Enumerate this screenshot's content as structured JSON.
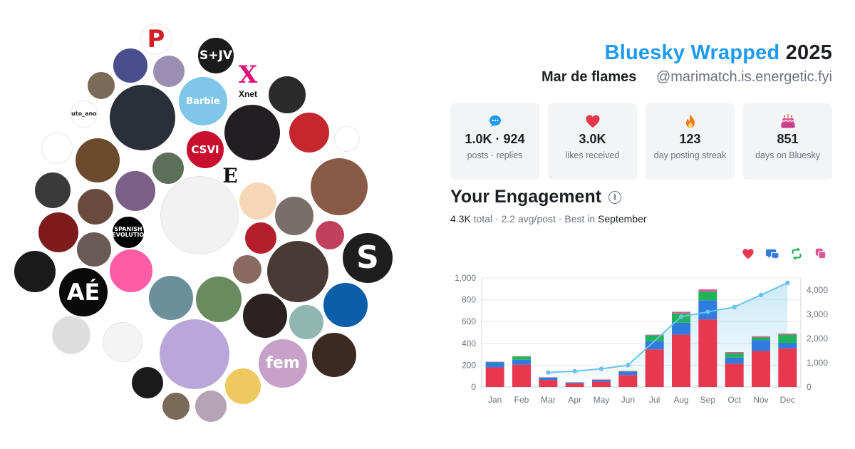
{
  "header": {
    "brand": "Bluesky Wrapped",
    "year": "2025",
    "display_name": "Mar de flames",
    "handle": "@marimatch.is.energetic.fyi"
  },
  "stats": [
    {
      "icon": "speech-bubble-icon",
      "color": "#1d9bf0",
      "value": "1.0K · 924",
      "label": "posts · replies"
    },
    {
      "icon": "heart-icon",
      "color": "#e8384f",
      "value": "3.0K",
      "label": "likes received"
    },
    {
      "icon": "flame-icon",
      "color": "#f07a1a",
      "value": "123",
      "label": "day posting streak"
    },
    {
      "icon": "cake-icon",
      "color": "#e0559a",
      "value": "851",
      "label": "days on Bluesky"
    }
  ],
  "engagement": {
    "title": "Your Engagement",
    "info_icon": "i",
    "total": "4.3K",
    "total_suffix": "total",
    "avg": "2.2 avg/post",
    "best_prefix": "Best in",
    "best_month": "September",
    "legend": [
      {
        "icon": "heart-icon",
        "color": "#e8384f"
      },
      {
        "icon": "reply-icon",
        "color": "#2f7be0"
      },
      {
        "icon": "repost-icon",
        "color": "#1fb35a"
      },
      {
        "icon": "quote-icon",
        "color": "#e0559a"
      }
    ]
  },
  "avatars": {
    "labels": [
      "P",
      "S+JV",
      "X",
      "Xnet",
      "auto_anon",
      "Barbie",
      "CSVI",
      "E",
      "SPANISH REVOLUTION",
      "S",
      "AÉ",
      "fem"
    ]
  },
  "chart_data": {
    "type": "bar",
    "categories": [
      "Jan",
      "Feb",
      "Mar",
      "Apr",
      "May",
      "Jun",
      "Jul",
      "Aug",
      "Sep",
      "Oct",
      "Nov",
      "Dec"
    ],
    "series": [
      {
        "values": [
          180,
          205,
          65,
          30,
          50,
          110,
          345,
          480,
          620,
          215,
          330,
          355
        ],
        "color": "#e8384f"
      },
      {
        "values": [
          45,
          45,
          20,
          10,
          15,
          30,
          75,
          110,
          175,
          55,
          100,
          50
        ],
        "color": "#2f7be0"
      },
      {
        "values": [
          5,
          30,
          3,
          2,
          3,
          5,
          55,
          85,
          80,
          40,
          25,
          75
        ],
        "color": "#1fb35a"
      },
      {
        "values": [
          2,
          3,
          1,
          1,
          1,
          2,
          5,
          15,
          20,
          10,
          10,
          10
        ],
        "color": "#e0559a"
      }
    ],
    "cumulative": {
      "values": [
        null,
        null,
        600,
        650,
        750,
        900,
        null,
        2900,
        3100,
        3300,
        3800,
        4300
      ],
      "color": "#6cc3ea"
    },
    "yticks_left": [
      "0",
      "200",
      "400",
      "600",
      "800",
      "1,000"
    ],
    "yticks_right": [
      "0",
      "1,000",
      "2,000",
      "3,000",
      "4,000"
    ],
    "ylim_left": [
      0,
      1000
    ],
    "ylim_right": [
      0,
      4500
    ],
    "grid": true
  }
}
